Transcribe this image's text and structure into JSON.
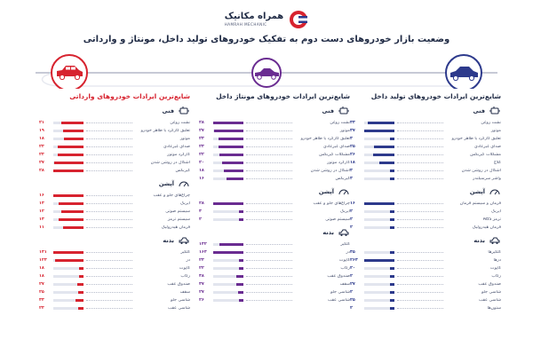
{
  "logo": {
    "name_fa": "همراه مکانیک",
    "name_en": "HAMRAH MECHANIC"
  },
  "title": "وضعیت بازار خودروهای دست دوم به تفکیک خودروهای تولید داخل، مونتاژ و وارداتی",
  "colors": {
    "navy": "#2d3a8c",
    "purple": "#6a2c91",
    "red": "#d7232f",
    "road_gray": "#c7cad6"
  },
  "columns": [
    {
      "key": "domestic",
      "color": "#2d3a8c",
      "title": "شایع‌ترین ایرادات خودروهای تولید داخل",
      "sections": [
        {
          "label": "فنی",
          "icon": "engine-icon",
          "rows": [
            {
              "name": "نشت روغن",
              "value": "۳۳"
            },
            {
              "name": "موتور",
              "value": "۳۷"
            },
            {
              "name": "تعلیق کارکرد یا ظاهر خودرو",
              "value": "۴"
            },
            {
              "name": "صدای غیرعادی",
              "value": "۲۵"
            },
            {
              "name": "مشکلات گیربکس",
              "value": "۲۶"
            },
            {
              "name": "کلاچ",
              "value": "۱۸"
            },
            {
              "name": "اشکال در روشن شدن",
              "value": "۴"
            },
            {
              "name": "واشر سرسیلندر",
              "value": "۴"
            }
          ]
        },
        {
          "label": "آپشن",
          "icon": "dashboard-icon",
          "rows": [
            {
              "name": "فرمان و سیستم فرمان",
              "value": "۱۶"
            },
            {
              "name": "ایربگ",
              "value": "۲"
            },
            {
              "name": "ترمز ABS",
              "value": "۲"
            },
            {
              "name": "فرمان هیدرولیک",
              "value": "۲"
            }
          ]
        },
        {
          "label": "بدنه",
          "icon": "car-body-icon",
          "rows": [
            {
              "name": "گلگیرها",
              "value": "۳۵"
            },
            {
              "name": "درها",
              "value": "۲۶۳"
            },
            {
              "name": "کاپوت",
              "value": "۲۰"
            },
            {
              "name": "رکاب",
              "value": "۲"
            },
            {
              "name": "صندوق عقب",
              "value": "۲۷"
            },
            {
              "name": "شاسی جلو",
              "value": "۲"
            },
            {
              "name": "شاسی عقب",
              "value": "۲۵"
            },
            {
              "name": "ستون‌ها",
              "value": "۲"
            }
          ]
        }
      ]
    },
    {
      "key": "assembled",
      "color": "#6a2c91",
      "title": "شایع‌ترین ایرادات خودروهای مونتاژ داخل",
      "sections": [
        {
          "label": "فنی",
          "icon": "engine-icon",
          "rows": [
            {
              "name": "نشت روغن",
              "value": "۲۸"
            },
            {
              "name": "موتور",
              "value": "۲۷"
            },
            {
              "name": "تعلیق کارکرد یا ظاهر خودرو",
              "value": "۲۳"
            },
            {
              "name": "صدای غیرعادی",
              "value": "۲۳"
            },
            {
              "name": "مشکلات گیربکس",
              "value": "۲۲"
            },
            {
              "name": "کارکرد موتور",
              "value": "۲۰"
            },
            {
              "name": "اشکال در روشن شدن",
              "value": "۱۸"
            },
            {
              "name": "گیربکس",
              "value": "۱۶"
            }
          ]
        },
        {
          "label": "آپشن",
          "icon": "dashboard-icon",
          "rows": [
            {
              "name": "چراغ‌های جلو و عقب",
              "value": "۲۸"
            },
            {
              "name": "ایربگ",
              "value": "۳"
            },
            {
              "name": "سیستم صوتی",
              "value": "۲"
            }
          ]
        },
        {
          "label": "بدنه",
          "icon": "car-body-icon",
          "rows": [
            {
              "name": "گلگیر",
              "value": "۱۳۲"
            },
            {
              "name": "در",
              "value": "۱۶۴"
            },
            {
              "name": "کاپوت",
              "value": "۲۳"
            },
            {
              "name": "رکاب",
              "value": "۲۲"
            },
            {
              "name": "صندوق عقب",
              "value": "۳۸"
            },
            {
              "name": "سقف",
              "value": "۳۷"
            },
            {
              "name": "شاسی جلو",
              "value": "۲۷"
            },
            {
              "name": "شاسی عقب",
              "value": "۲۶"
            }
          ]
        }
      ]
    },
    {
      "key": "imported",
      "color": "#d7232f",
      "title": "شایع‌ترین ایرادات خودروهای وارداتی",
      "sections": [
        {
          "label": "فنی",
          "icon": "engine-icon",
          "rows": [
            {
              "name": "نشت روغن",
              "value": "۲۱"
            },
            {
              "name": "تعلیق کارکرد یا ظاهر خودرو",
              "value": "۱۹"
            },
            {
              "name": "موتور",
              "value": "۱۸"
            },
            {
              "name": "صدای غیرعادی",
              "value": "۲۴"
            },
            {
              "name": "کارکرد موتور",
              "value": "۲۴"
            },
            {
              "name": "اشکال در روشن شدن",
              "value": "۲۷"
            },
            {
              "name": "گیربکس",
              "value": "۲۸"
            }
          ]
        },
        {
          "label": "آپشن",
          "icon": "dashboard-icon",
          "rows": [
            {
              "name": "چراغ‌های جلو و عقب",
              "value": "۱۶"
            },
            {
              "name": "ایربگ",
              "value": "۱۳"
            },
            {
              "name": "سیستم صوتی",
              "value": "۱۲"
            },
            {
              "name": "سیستم ترمز",
              "value": "۱۳"
            },
            {
              "name": "فرمان هیدرولیک",
              "value": "۱۱"
            }
          ]
        },
        {
          "label": "بدنه",
          "icon": "car-body-icon",
          "rows": [
            {
              "name": "گلگیر",
              "value": "۱۳۱"
            },
            {
              "name": "در",
              "value": "۱۲۳"
            },
            {
              "name": "کاپوت",
              "value": "۱۸"
            },
            {
              "name": "رکاب",
              "value": "۱۸"
            },
            {
              "name": "صندوق عقب",
              "value": "۲۷"
            },
            {
              "name": "سقف",
              "value": "۲۵"
            },
            {
              "name": "شاسی جلو",
              "value": "۳۳"
            },
            {
              "name": "شاسی عقب",
              "value": "۲۴"
            }
          ]
        }
      ]
    }
  ]
}
